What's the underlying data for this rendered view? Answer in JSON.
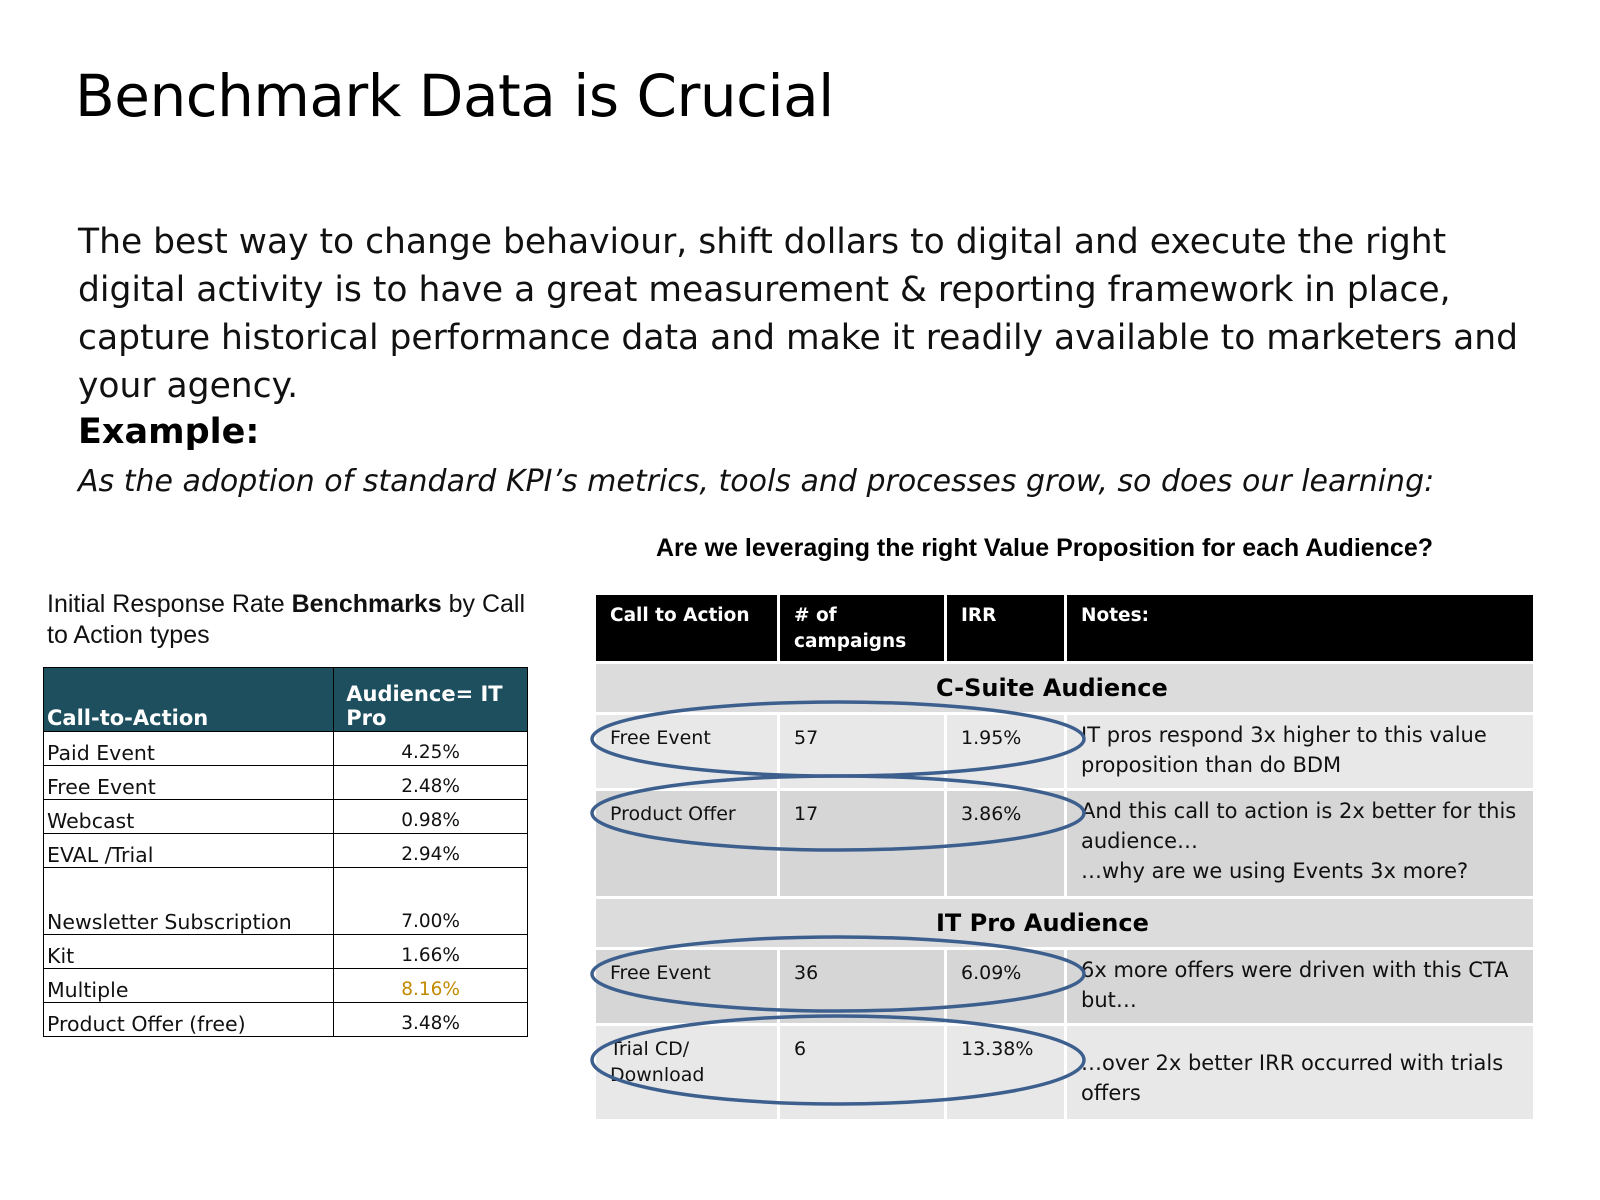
{
  "slide": {
    "title": "Benchmark Data is Crucial",
    "intro": "The best way to change behaviour, shift dollars to digital and execute the right digital activity is to have a great measurement & reporting framework in place, capture historical performance data and make it readily available to marketers and your agency.",
    "example_label": "Example:",
    "example_sub": "As the adoption of standard KPI’s metrics, tools and processes grow, so does our learning:"
  },
  "benchmark": {
    "caption_part1": "Initial Response Rate ",
    "caption_bold": "Benchmarks",
    "caption_part2": " by Call to Action types",
    "headers": [
      "Call-to-Action",
      "Audience= IT Pro"
    ],
    "rows": [
      {
        "label": "Paid Event",
        "value": "4.25%"
      },
      {
        "label": "Free Event",
        "value": "2.48%"
      },
      {
        "label": "Webcast",
        "value": "0.98%"
      },
      {
        "label": "EVAL /Trial",
        "value": "2.94%"
      },
      {
        "label": "Newsletter Subscription",
        "value": "7.00%"
      },
      {
        "label": "Kit",
        "value": "1.66%"
      },
      {
        "label": "Multiple",
        "value": "8.16%"
      },
      {
        "label": "Product Offer (free)",
        "value": "3.48%"
      }
    ],
    "highlight_color": "#c28a00",
    "header_color": "#1d4f5e"
  },
  "comparison": {
    "title": "Are we leveraging the right Value Proposition for each Audience?",
    "headers": [
      "Call to Action",
      "# of campaigns",
      "IRR",
      "Notes:"
    ],
    "sections": [
      {
        "name": "C-Suite Audience",
        "rows": [
          {
            "cta": "Free Event",
            "campaigns": "57",
            "irr": "1.95%",
            "notes": "IT pros respond 3x higher to this value proposition than do BDM"
          },
          {
            "cta": "Product Offer",
            "campaigns": "17",
            "irr": "3.86%",
            "notes": "And this call to action is 2x better for this audience…",
            "notes2": "…why are we using Events 3x more?"
          }
        ]
      },
      {
        "name": "IT Pro Audience",
        "rows": [
          {
            "cta": "Free Event",
            "campaigns": "36",
            "irr": "6.09%",
            "notes": "6x more offers were driven with this CTA but…"
          },
          {
            "cta": "Trial CD/ Download",
            "campaigns": "6",
            "irr": "13.38%",
            "notes": "…over 2x better IRR occurred with trials offers"
          }
        ]
      }
    ],
    "ellipse_color": "#3d5f8e"
  }
}
